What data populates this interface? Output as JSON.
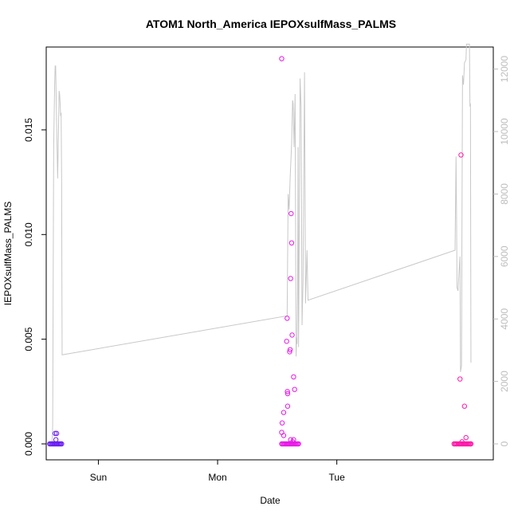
{
  "chart_data": {
    "type": "scatter",
    "title": "ATOM1 North_America IEPOXsulfMass_PALMS",
    "xlabel": "Date",
    "ylabel": "IEPOXsulfMass_PALMS",
    "x_ticks": [
      "Sun",
      "Mon",
      "Tue"
    ],
    "ylim_left": [
      0,
      0.0185
    ],
    "y_ticks_left": [
      "0.000",
      "0.005",
      "0.010",
      "0.015"
    ],
    "ylim_right": [
      0,
      12400
    ],
    "y_ticks_right": [
      "0",
      "2000",
      "4000",
      "6000",
      "8000",
      "10000",
      "12000"
    ],
    "xlim_hours": [
      -10.5,
      79.5
    ],
    "grid": false,
    "legend": "none",
    "colors": {
      "line": "#c8c8c8",
      "points_early": "#6a1ff0",
      "points_mid": "#e61ae6",
      "points_late": "#ff1aa8"
    },
    "series": [
      {
        "type": "line",
        "axis": "right",
        "points": [
          [
            -9.3,
            50
          ],
          [
            -9.2,
            600
          ],
          [
            -9.0,
            9500
          ],
          [
            -8.8,
            11500
          ],
          [
            -8.7,
            12100
          ],
          [
            -8.6,
            12100
          ],
          [
            -8.4,
            10200
          ],
          [
            -8.2,
            8500
          ],
          [
            -8.0,
            10300
          ],
          [
            -7.9,
            11300
          ],
          [
            -7.8,
            11200
          ],
          [
            -7.7,
            10900
          ],
          [
            -7.6,
            10500
          ],
          [
            -7.5,
            10600
          ],
          [
            -7.4,
            8500
          ],
          [
            -7.3,
            2850
          ],
          [
            38.0,
            4100
          ],
          [
            38.2,
            8000
          ],
          [
            38.4,
            7500
          ],
          [
            38.6,
            8500
          ],
          [
            38.9,
            9600
          ],
          [
            39.1,
            11000
          ],
          [
            39.2,
            10900
          ],
          [
            39.4,
            9500
          ],
          [
            39.6,
            11200
          ],
          [
            39.8,
            2800
          ],
          [
            39.9,
            3400
          ],
          [
            40.0,
            3200
          ],
          [
            40.1,
            4800
          ],
          [
            40.2,
            9500
          ],
          [
            40.3,
            3100
          ],
          [
            40.4,
            5800
          ],
          [
            40.6,
            11700
          ],
          [
            40.8,
            10800
          ],
          [
            41.0,
            3800
          ],
          [
            41.2,
            5200
          ],
          [
            41.5,
            11900
          ],
          [
            41.7,
            4500
          ],
          [
            42.0,
            6200
          ],
          [
            42.2,
            4600
          ],
          [
            71.8,
            6200
          ],
          [
            72.0,
            9200
          ],
          [
            72.1,
            7400
          ],
          [
            72.2,
            5000
          ],
          [
            72.4,
            4900
          ],
          [
            72.6,
            5500
          ],
          [
            72.8,
            6000
          ],
          [
            72.9,
            2300
          ],
          [
            73.1,
            2500
          ],
          [
            73.3,
            11800
          ],
          [
            73.5,
            11500
          ],
          [
            73.7,
            12200
          ],
          [
            74.0,
            12300
          ],
          [
            74.1,
            12800
          ],
          [
            74.3,
            12800
          ],
          [
            74.5,
            12800
          ],
          [
            74.7,
            12800
          ],
          [
            74.8,
            10800
          ],
          [
            74.9,
            10900
          ],
          [
            75.0,
            2600
          ]
        ]
      },
      {
        "type": "scatter",
        "axis": "left",
        "points": [
          [
            -9.8,
            0.0
          ],
          [
            -9.6,
            0.0
          ],
          [
            -9.4,
            0.0
          ],
          [
            -9.2,
            0.0
          ],
          [
            -9.0,
            0.0
          ],
          [
            -8.8,
            0.0
          ],
          [
            -8.6,
            0.0
          ],
          [
            -8.4,
            0.0
          ],
          [
            -8.2,
            0.0
          ],
          [
            -8.0,
            0.0
          ],
          [
            -7.8,
            0.0
          ],
          [
            -7.6,
            0.0
          ],
          [
            -7.4,
            0.0
          ],
          [
            -8.7,
            0.0005
          ],
          [
            -8.4,
            0.0005
          ],
          [
            -8.55,
            0.0002
          ],
          [
            36.9,
            0.0184
          ],
          [
            36.9,
            0.00055
          ],
          [
            37.0,
            0.001
          ],
          [
            37.3,
            0.0015
          ],
          [
            37.3,
            0.0004
          ],
          [
            37.9,
            0.0049
          ],
          [
            38.0,
            0.006
          ],
          [
            38.05,
            0.0025
          ],
          [
            38.1,
            0.0024
          ],
          [
            38.1,
            0.0018
          ],
          [
            38.5,
            0.0044
          ],
          [
            38.6,
            0.0045
          ],
          [
            38.7,
            0.0079
          ],
          [
            38.8,
            0.011
          ],
          [
            38.9,
            0.0096
          ],
          [
            39.0,
            0.0052
          ],
          [
            39.3,
            0.0032
          ],
          [
            39.5,
            0.0026
          ],
          [
            38.7,
            0.0002
          ],
          [
            39.1,
            0.0001
          ],
          [
            39.3,
            0.0002
          ],
          [
            36.9,
            0.0
          ],
          [
            37.1,
            0.0
          ],
          [
            37.3,
            0.0
          ],
          [
            37.5,
            0.0
          ],
          [
            37.7,
            0.0
          ],
          [
            37.9,
            0.0
          ],
          [
            38.1,
            0.0
          ],
          [
            38.3,
            0.0
          ],
          [
            38.5,
            0.0
          ],
          [
            38.7,
            0.0
          ],
          [
            38.9,
            0.0
          ],
          [
            39.1,
            0.0
          ],
          [
            39.3,
            0.0
          ],
          [
            39.5,
            0.0
          ],
          [
            39.7,
            0.0
          ],
          [
            39.9,
            0.0
          ],
          [
            40.1,
            0.0
          ],
          [
            40.3,
            0.0
          ],
          [
            71.6,
            0.0
          ],
          [
            71.8,
            0.0
          ],
          [
            72.0,
            0.0
          ],
          [
            72.2,
            0.0
          ],
          [
            72.5,
            0.0
          ],
          [
            72.7,
            0.0
          ],
          [
            72.9,
            0.0
          ],
          [
            73.1,
            0.0
          ],
          [
            73.3,
            0.0
          ],
          [
            73.5,
            0.0
          ],
          [
            73.7,
            0.0
          ],
          [
            73.9,
            0.0
          ],
          [
            74.1,
            0.0
          ],
          [
            74.3,
            0.0
          ],
          [
            74.5,
            0.0
          ],
          [
            74.7,
            0.0
          ],
          [
            74.9,
            0.0
          ],
          [
            75.0,
            0.0
          ],
          [
            73.0,
            0.0138
          ],
          [
            72.8,
            0.0031
          ],
          [
            73.7,
            0.0018
          ],
          [
            74.0,
            0.0003
          ],
          [
            73.2,
            0.0001
          ]
        ]
      }
    ]
  }
}
